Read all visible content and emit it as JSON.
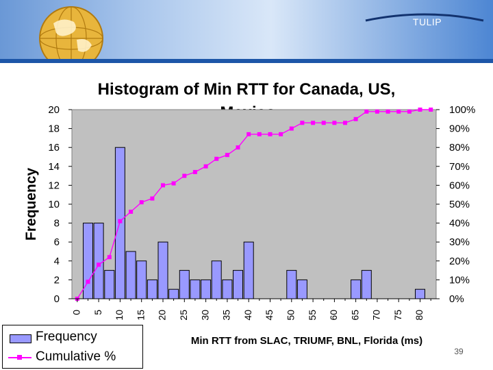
{
  "header": {
    "brand_label": "TULIP",
    "gradient_colors": [
      "#6a98d6",
      "#d9e7f8",
      "#4d86d3"
    ]
  },
  "slide_number": "39",
  "legend": {
    "items": [
      {
        "label": "Frequency",
        "color": "#9999ff"
      },
      {
        "label": "Cumulative %",
        "color": "#ff00ff"
      }
    ]
  },
  "chart_data": {
    "type": "bar",
    "title_lines": [
      "Histogram of Min RTT for Canada, US,",
      "Mexico"
    ],
    "xlabel": "Min RTT from SLAC, TRIUMF, BNL, Florida (ms)",
    "ylabel": "Frequency",
    "ylim": [
      0,
      20
    ],
    "y_ticks": [
      "0",
      "2",
      "4",
      "6",
      "8",
      "10",
      "12",
      "14",
      "16",
      "18",
      "20"
    ],
    "y2lim": [
      0,
      100
    ],
    "y2_ticks": [
      "0%",
      "10%",
      "20%",
      "30%",
      "40%",
      "50%",
      "60%",
      "70%",
      "80%",
      "90%",
      "100%"
    ],
    "x_tick_labels": [
      "0",
      "5",
      "10",
      "15",
      "20",
      "25",
      "30",
      "35",
      "40",
      "45",
      "50",
      "55",
      "60",
      "65",
      "70",
      "75",
      "80"
    ],
    "grid": false,
    "plot_background": "#c0c0c0",
    "bar_color": "#9999ff",
    "line_color": "#ff00ff",
    "legend_position": "bottom-left",
    "series": [
      {
        "name": "Frequency",
        "type": "bar",
        "x": [
          0,
          2.5,
          5,
          7.5,
          10,
          12.5,
          15,
          17.5,
          20,
          22.5,
          25,
          27.5,
          30,
          32.5,
          35,
          37.5,
          40,
          42.5,
          45,
          47.5,
          50,
          52.5,
          55,
          57.5,
          60,
          62.5,
          65,
          67.5,
          70,
          72.5,
          75,
          77.5,
          80,
          82.5
        ],
        "values": [
          0,
          8,
          8,
          3,
          16,
          5,
          4,
          2,
          6,
          1,
          3,
          2,
          2,
          4,
          2,
          3,
          6,
          0,
          0,
          0,
          3,
          2,
          0,
          0,
          0,
          0,
          2,
          3,
          0,
          0,
          0,
          0,
          1,
          0
        ]
      },
      {
        "name": "Cumulative %",
        "type": "line",
        "x": [
          0,
          2.5,
          5,
          7.5,
          10,
          12.5,
          15,
          17.5,
          20,
          22.5,
          25,
          27.5,
          30,
          32.5,
          35,
          37.5,
          40,
          42.5,
          45,
          47.5,
          50,
          52.5,
          55,
          57.5,
          60,
          62.5,
          65,
          67.5,
          70,
          72.5,
          75,
          77.5,
          80,
          82.5
        ],
        "values": [
          0,
          9,
          18,
          22,
          41,
          46,
          51,
          53,
          60,
          61,
          65,
          67,
          70,
          74,
          76,
          80,
          87,
          87,
          87,
          87,
          90,
          93,
          93,
          93,
          93,
          93,
          95,
          99,
          99,
          99,
          99,
          99,
          100,
          100
        ]
      }
    ]
  }
}
